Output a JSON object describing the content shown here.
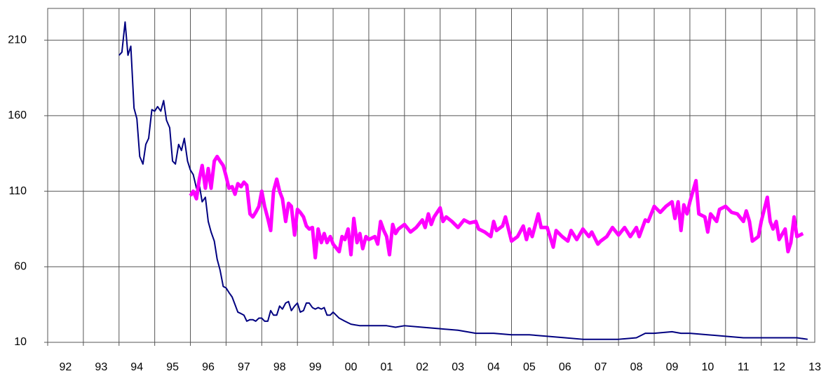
{
  "chart_data": {
    "type": "line",
    "xlim": [
      1992,
      2013.5
    ],
    "xticks": [
      {
        "value": 1992,
        "label": "92"
      },
      {
        "value": 1993,
        "label": "93"
      },
      {
        "value": 1994,
        "label": "94"
      },
      {
        "value": 1995,
        "label": "95"
      },
      {
        "value": 1996,
        "label": "96"
      },
      {
        "value": 1997,
        "label": "97"
      },
      {
        "value": 1998,
        "label": "98"
      },
      {
        "value": 1999,
        "label": "99"
      },
      {
        "value": 2000,
        "label": "00"
      },
      {
        "value": 2001,
        "label": "01"
      },
      {
        "value": 2002,
        "label": "02"
      },
      {
        "value": 2003,
        "label": "03"
      },
      {
        "value": 2004,
        "label": "04"
      },
      {
        "value": 2005,
        "label": "05"
      },
      {
        "value": 2006,
        "label": "06"
      },
      {
        "value": 2007,
        "label": "07"
      },
      {
        "value": 2008,
        "label": "08"
      },
      {
        "value": 2009,
        "label": "09"
      },
      {
        "value": 2010,
        "label": "10"
      },
      {
        "value": 2011,
        "label": "11"
      },
      {
        "value": 2012,
        "label": "12"
      },
      {
        "value": 2013,
        "label": "13"
      }
    ],
    "ylim": [
      10,
      231
    ],
    "yticks": [
      10,
      60,
      110,
      160,
      210
    ],
    "grid": true,
    "series": [
      {
        "color": "#000080",
        "width": 2,
        "x": [
          1994.0,
          1994.08,
          1994.17,
          1994.25,
          1994.33,
          1994.42,
          1994.5,
          1994.58,
          1994.67,
          1994.75,
          1994.83,
          1994.92,
          1995.0,
          1995.08,
          1995.17,
          1995.25,
          1995.33,
          1995.42,
          1995.5,
          1995.58,
          1995.67,
          1995.75,
          1995.83,
          1995.92,
          1996.0,
          1996.08,
          1996.17,
          1996.25,
          1996.33,
          1996.42,
          1996.5,
          1996.58,
          1996.67,
          1996.75,
          1996.83,
          1996.92,
          1997.0,
          1997.08,
          1997.17,
          1997.25,
          1997.33,
          1997.42,
          1997.5,
          1997.58,
          1997.67,
          1997.75,
          1997.83,
          1997.92,
          1998.0,
          1998.08,
          1998.17,
          1998.25,
          1998.33,
          1998.42,
          1998.5,
          1998.58,
          1998.67,
          1998.75,
          1998.83,
          1998.92,
          1999.0,
          1999.08,
          1999.17,
          1999.25,
          1999.33,
          1999.42,
          1999.5,
          1999.58,
          1999.67,
          1999.75,
          1999.83,
          1999.92,
          2000.0,
          2000.17,
          2000.33,
          2000.5,
          2000.75,
          2001.0,
          2001.5,
          2001.75,
          2002.0,
          2002.5,
          2003.0,
          2003.5,
          2004.0,
          2004.5,
          2005.0,
          2005.5,
          2006.0,
          2006.5,
          2007.0,
          2007.5,
          2008.0,
          2008.5,
          2008.75,
          2009.0,
          2009.5,
          2009.75,
          2010.0,
          2010.5,
          2011.0,
          2011.5,
          2012.0,
          2012.5,
          2013.0,
          2013.3
        ],
        "values": [
          200,
          202,
          222,
          200,
          206,
          165,
          158,
          133,
          128,
          141,
          145,
          164,
          163,
          166,
          163,
          170,
          157,
          152,
          130,
          128,
          141,
          137,
          145,
          130,
          124,
          121,
          112,
          114,
          103,
          106,
          90,
          83,
          77,
          65,
          58,
          47,
          46,
          43,
          40,
          35,
          30,
          29,
          28,
          24,
          25,
          25,
          24,
          26,
          26,
          24,
          24,
          31,
          28,
          28,
          34,
          32,
          36,
          37,
          31,
          34,
          36,
          30,
          31,
          36,
          36,
          33,
          32,
          33,
          32,
          33,
          28,
          28,
          30,
          26,
          24,
          22,
          21,
          21,
          21,
          20,
          21,
          20,
          19,
          18,
          16,
          16,
          15,
          15,
          14,
          13,
          12,
          12,
          12,
          13,
          16,
          16,
          17,
          16,
          16,
          15,
          14,
          13,
          13,
          13,
          13,
          12
        ]
      },
      {
        "color": "#ff00ff",
        "width": 5,
        "x": [
          1996.0,
          1996.08,
          1996.17,
          1996.25,
          1996.33,
          1996.42,
          1996.5,
          1996.58,
          1996.67,
          1996.75,
          1996.83,
          1996.92,
          1997.0,
          1997.08,
          1997.17,
          1997.25,
          1997.33,
          1997.42,
          1997.5,
          1997.58,
          1997.67,
          1997.75,
          1997.83,
          1997.92,
          1998.0,
          1998.08,
          1998.17,
          1998.25,
          1998.33,
          1998.42,
          1998.5,
          1998.58,
          1998.67,
          1998.75,
          1998.83,
          1998.92,
          1999.0,
          1999.08,
          1999.17,
          1999.25,
          1999.33,
          1999.42,
          1999.5,
          1999.58,
          1999.67,
          1999.75,
          1999.83,
          1999.92,
          2000.0,
          2000.17,
          2000.25,
          2000.33,
          2000.42,
          2000.5,
          2000.58,
          2000.67,
          2000.75,
          2000.83,
          2000.92,
          2001.0,
          2001.17,
          2001.25,
          2001.33,
          2001.42,
          2001.5,
          2001.58,
          2001.67,
          2001.75,
          2001.83,
          2002.0,
          2002.17,
          2002.33,
          2002.5,
          2002.58,
          2002.67,
          2002.75,
          2002.83,
          2003.0,
          2003.08,
          2003.17,
          2003.33,
          2003.5,
          2003.67,
          2003.83,
          2004.0,
          2004.08,
          2004.25,
          2004.42,
          2004.5,
          2004.58,
          2004.75,
          2004.83,
          2005.0,
          2005.17,
          2005.33,
          2005.42,
          2005.5,
          2005.58,
          2005.75,
          2005.83,
          2006.0,
          2006.17,
          2006.25,
          2006.42,
          2006.58,
          2006.67,
          2006.83,
          2007.0,
          2007.17,
          2007.25,
          2007.42,
          2007.5,
          2007.67,
          2007.83,
          2008.0,
          2008.17,
          2008.33,
          2008.5,
          2008.58,
          2008.75,
          2008.83,
          2009.0,
          2009.17,
          2009.33,
          2009.5,
          2009.58,
          2009.67,
          2009.75,
          2009.83,
          2009.92,
          2010.0,
          2010.17,
          2010.25,
          2010.42,
          2010.5,
          2010.58,
          2010.75,
          2010.83,
          2011.0,
          2011.17,
          2011.33,
          2011.5,
          2011.58,
          2011.67,
          2011.75,
          2011.92,
          2012.0,
          2012.17,
          2012.25,
          2012.33,
          2012.42,
          2012.5,
          2012.67,
          2012.75,
          2012.83,
          2012.92,
          2013.0,
          2013.17
        ],
        "values": [
          107,
          110,
          105,
          118,
          127,
          112,
          125,
          112,
          130,
          133,
          130,
          127,
          120,
          112,
          113,
          108,
          115,
          113,
          116,
          114,
          95,
          93,
          96,
          100,
          110,
          100,
          92,
          84,
          110,
          118,
          110,
          105,
          90,
          102,
          100,
          81,
          98,
          96,
          93,
          87,
          85,
          86,
          66,
          85,
          76,
          82,
          76,
          80,
          75,
          70,
          80,
          78,
          85,
          68,
          92,
          76,
          82,
          72,
          80,
          78,
          80,
          75,
          90,
          84,
          80,
          68,
          88,
          82,
          85,
          88,
          83,
          86,
          91,
          86,
          95,
          88,
          93,
          99,
          90,
          93,
          90,
          86,
          91,
          89,
          90,
          85,
          83,
          80,
          90,
          84,
          87,
          93,
          77,
          80,
          87,
          78,
          85,
          80,
          95,
          86,
          86,
          73,
          84,
          80,
          77,
          84,
          78,
          85,
          80,
          83,
          75,
          77,
          80,
          86,
          81,
          86,
          80,
          86,
          80,
          91,
          90,
          100,
          96,
          100,
          103,
          92,
          103,
          84,
          101,
          95,
          103,
          117,
          95,
          93,
          83,
          95,
          90,
          98,
          100,
          96,
          95,
          90,
          97,
          90,
          77,
          80,
          90,
          106,
          90,
          85,
          90,
          78,
          85,
          70,
          76,
          93,
          80,
          82
        ]
      }
    ]
  }
}
